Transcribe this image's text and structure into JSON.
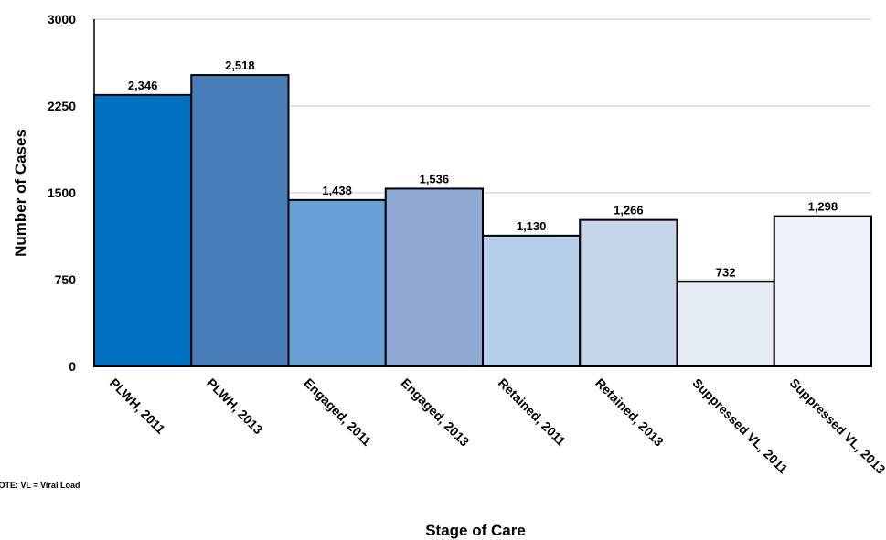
{
  "chart_data": {
    "type": "bar",
    "categories": [
      "PLWH, 2011",
      "PLWH, 2013",
      "Engaged, 2011",
      "Engaged, 2013",
      "Retained, 2011",
      "Retained, 2013",
      "Suppressed VL, 2011",
      "Suppressed VL, 2013"
    ],
    "values": [
      2346,
      2518,
      1438,
      1536,
      1130,
      1266,
      732,
      1298
    ],
    "value_labels": [
      "2,346",
      "2,518",
      "1,438",
      "1,536",
      "1,130",
      "1,266",
      "732",
      "1,298"
    ],
    "colors": [
      "#0070c0",
      "#4a7ebb",
      "#6aa0d8",
      "#8eaad4",
      "#b4cde9",
      "#c6d5ea",
      "#e6edf7",
      "#eef2fa"
    ],
    "xlabel": "Stage of Care",
    "ylabel": "Number of Cases",
    "ylim": [
      0,
      3000
    ],
    "yticks": [
      0,
      750,
      1500,
      2250,
      3000
    ],
    "ytick_labels": [
      "0",
      "750",
      "1500",
      "2250",
      "3000"
    ],
    "grid": true,
    "note": "NOTE: VL = Viral Load"
  }
}
